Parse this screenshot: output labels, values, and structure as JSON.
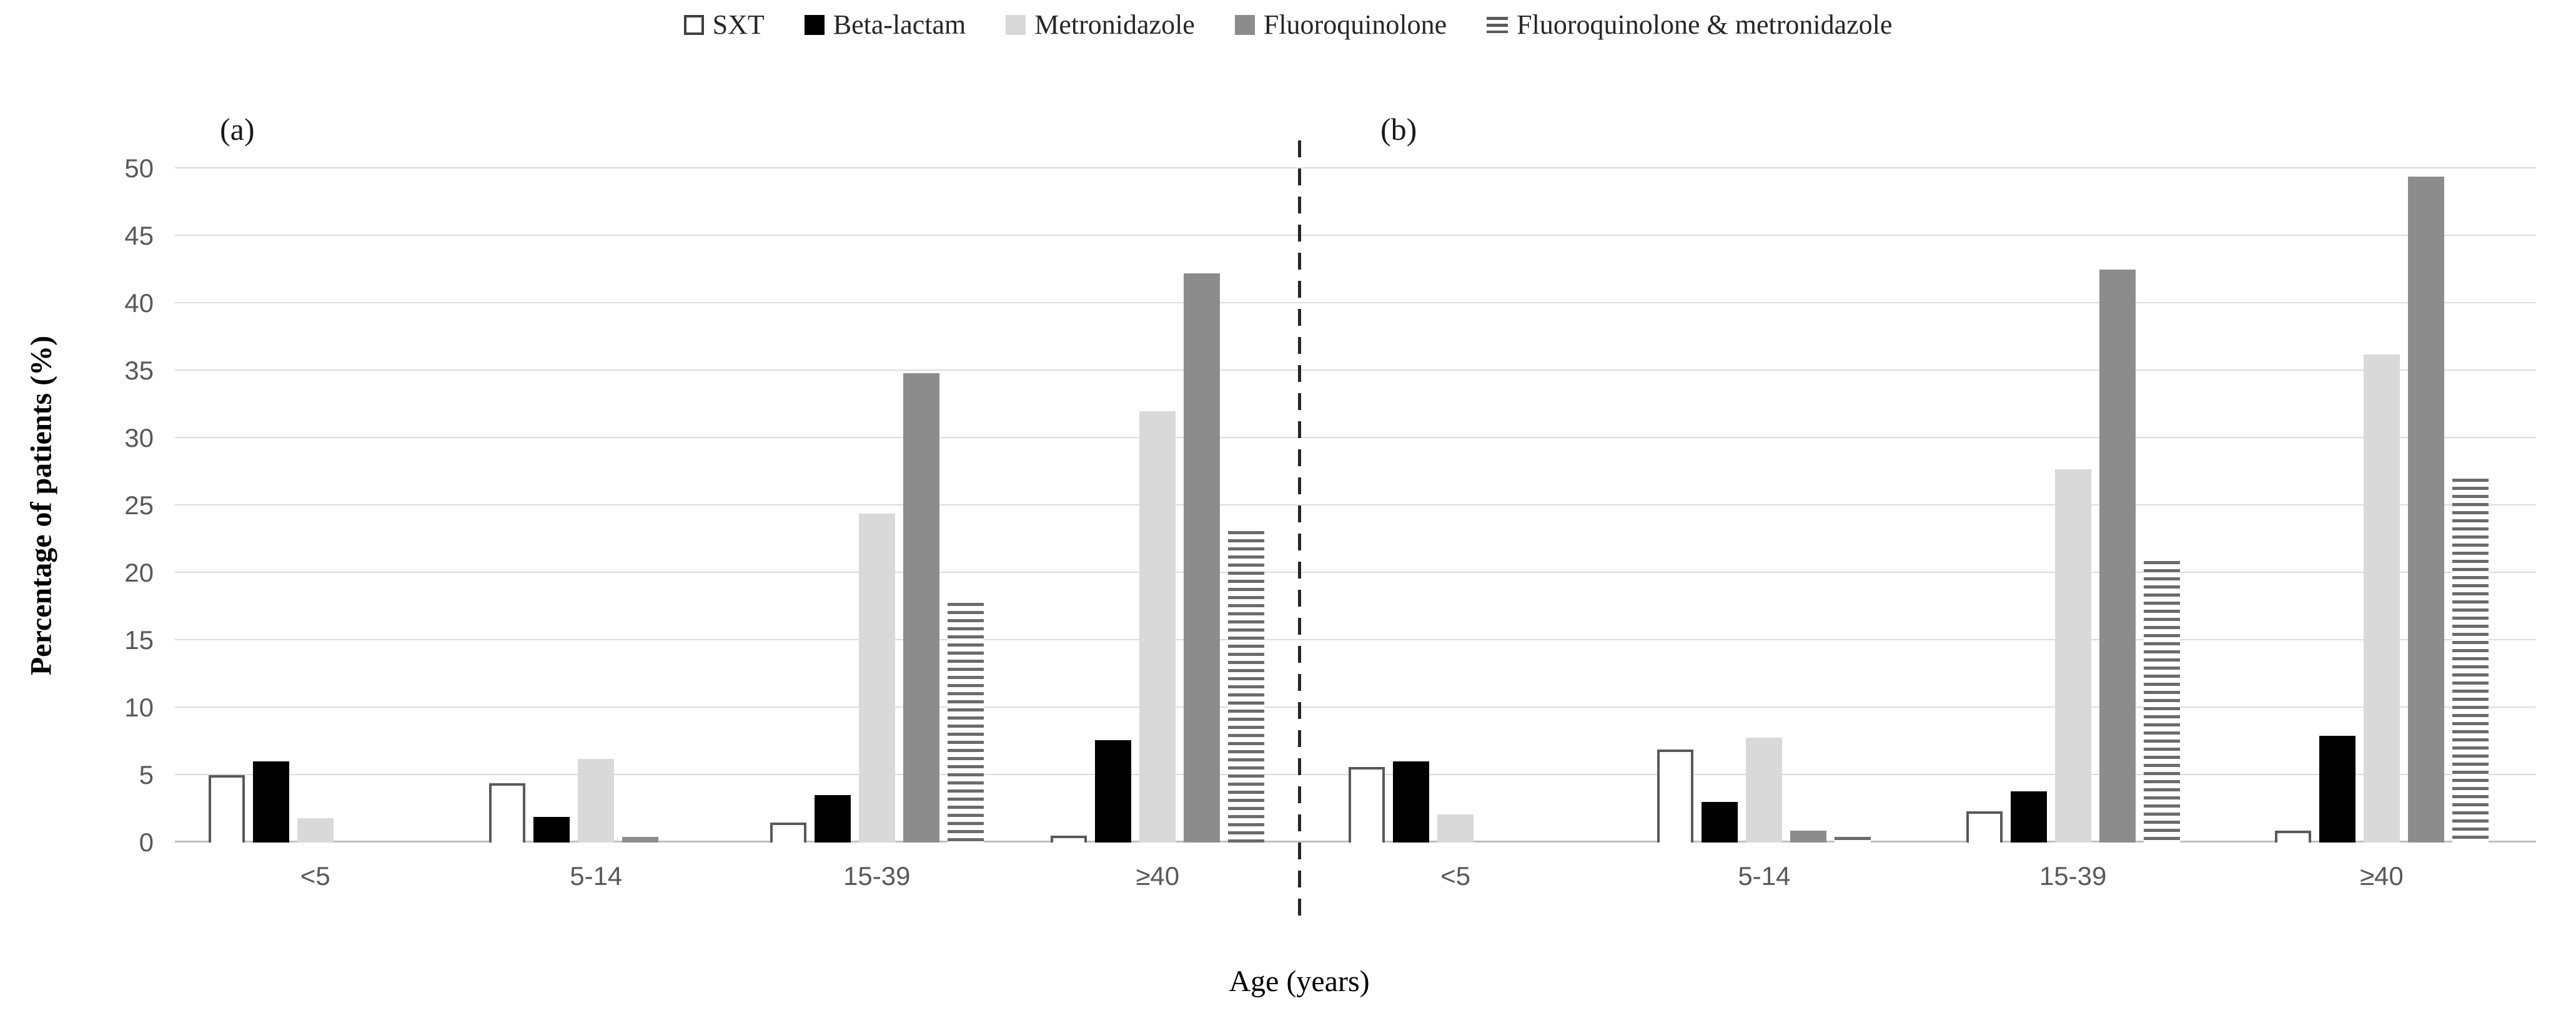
{
  "ylabel": "Percentage of patients (%)",
  "xlabel": "Age (years)",
  "y_ticks": [
    0,
    5,
    10,
    15,
    20,
    25,
    30,
    35,
    40,
    45,
    50
  ],
  "legend": [
    {
      "key": "sxt",
      "label": "SXT"
    },
    {
      "key": "beta",
      "label": "Beta-lactam"
    },
    {
      "key": "metro",
      "label": "Metronidazole"
    },
    {
      "key": "fq",
      "label": "Fluoroquinolone"
    },
    {
      "key": "fqm",
      "label": "Fluoroquinolone & metronidazole"
    }
  ],
  "colors": {
    "sxt_fill": "#ffffff",
    "sxt_border": "#595959",
    "beta_lactam": "#000000",
    "metronidazole": "#d9d9d9",
    "fluoroquinolone": "#8c8c8c",
    "stripe": "#6b6b6b",
    "gridline": "#dcdcdc"
  },
  "chart_data": {
    "type": "bar",
    "categories": [
      "<5",
      "5-14",
      "15-39",
      "≥40"
    ],
    "ylabel": "Percentage of patients (%)",
    "xlabel": "Age (years)",
    "ylim": [
      0,
      50
    ],
    "grid": "horizontal",
    "legend_position": "top-center",
    "panels": [
      {
        "label": "(a)",
        "series": [
          {
            "key": "sxt",
            "name": "SXT",
            "values": [
              5.0,
              4.4,
              1.5,
              0.5
            ]
          },
          {
            "key": "beta",
            "name": "Beta-lactam",
            "values": [
              6.0,
              1.9,
              3.5,
              7.6
            ]
          },
          {
            "key": "metro",
            "name": "Metronidazole",
            "values": [
              1.8,
              6.2,
              24.4,
              32.0
            ]
          },
          {
            "key": "fq",
            "name": "Fluoroquinolone",
            "values": [
              0,
              0.4,
              34.8,
              42.2
            ]
          },
          {
            "key": "fqm",
            "name": "Fluoroquinolone & metronidazole",
            "values": [
              0,
              0,
              17.8,
              23.1
            ]
          }
        ]
      },
      {
        "label": "(b)",
        "series": [
          {
            "key": "sxt",
            "name": "SXT",
            "values": [
              5.6,
              6.9,
              2.3,
              0.9
            ]
          },
          {
            "key": "beta",
            "name": "Beta-lactam",
            "values": [
              6.0,
              3.0,
              3.8,
              7.9
            ]
          },
          {
            "key": "metro",
            "name": "Metronidazole",
            "values": [
              2.1,
              7.8,
              27.7,
              36.2
            ]
          },
          {
            "key": "fq",
            "name": "Fluoroquinolone",
            "values": [
              0,
              0.9,
              42.5,
              49.4
            ]
          },
          {
            "key": "fqm",
            "name": "Fluoroquinolone & metronidazole",
            "values": [
              0,
              0.4,
              20.9,
              27.0
            ]
          }
        ]
      }
    ]
  }
}
